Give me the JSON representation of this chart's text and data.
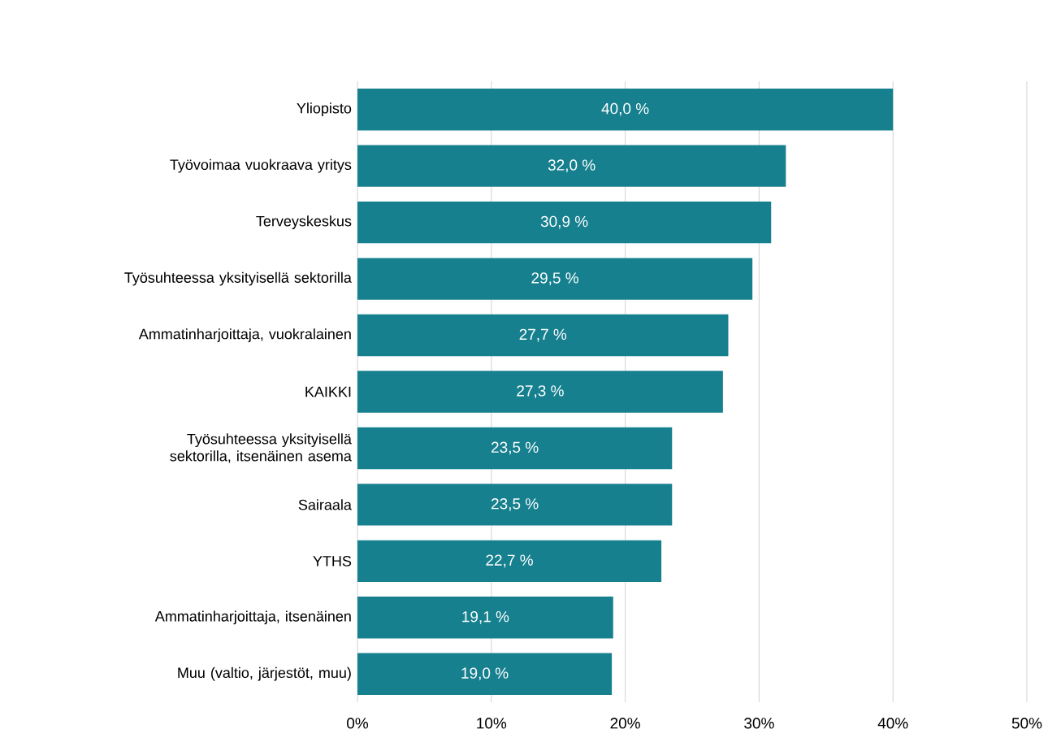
{
  "chart_data": {
    "type": "bar",
    "orientation": "horizontal",
    "categories": [
      "Yliopisto",
      "Työvoimaa vuokraava yritys",
      "Terveyskeskus",
      "Työsuhteessa yksityisellä sektorilla",
      "Ammatinharjoittaja, vuokralainen",
      "KAIKKI",
      "Työsuhteessa yksityisellä sektorilla, itsenäinen asema",
      "Sairaala",
      "YTHS",
      "Ammatinharjoittaja, itsenäinen",
      "Muu (valtio, järjestöt, muu)"
    ],
    "values": [
      40.0,
      32.0,
      30.9,
      29.5,
      27.7,
      27.3,
      23.5,
      23.5,
      22.7,
      19.1,
      19.0
    ],
    "value_labels": [
      "40,0 %",
      "32,0 %",
      "30,9 %",
      "29,5 %",
      "27,7 %",
      "27,3 %",
      "23,5 %",
      "23,5 %",
      "22,7 %",
      "19,1 %",
      "19,0 %"
    ],
    "color": "#17808f",
    "xlim": [
      0,
      50
    ],
    "xticks": [
      {
        "value": 0,
        "label": "0%"
      },
      {
        "value": 10,
        "label": "10%"
      },
      {
        "value": 20,
        "label": "20%"
      },
      {
        "value": 30,
        "label": "30%"
      },
      {
        "value": 40,
        "label": "40%"
      },
      {
        "value": 50,
        "label": "50%"
      }
    ],
    "grid": "x"
  }
}
